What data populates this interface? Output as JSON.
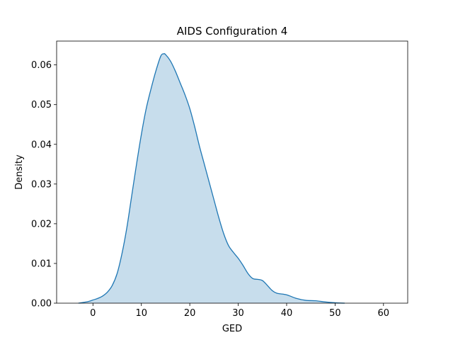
{
  "chart_data": {
    "type": "area",
    "title": "AIDS Configuration 4",
    "xlabel": "GED",
    "ylabel": "Density",
    "xlim": [
      -7.5,
      65
    ],
    "ylim": [
      0,
      0.066
    ],
    "x_ticks": [
      0,
      10,
      20,
      30,
      40,
      50,
      60
    ],
    "y_ticks": [
      0.0,
      0.01,
      0.02,
      0.03,
      0.04,
      0.05,
      0.06
    ],
    "y_tick_labels": [
      "0.00",
      "0.01",
      "0.02",
      "0.03",
      "0.04",
      "0.05",
      "0.06"
    ],
    "grid": false,
    "legend": "none",
    "colors": {
      "line": "#1f77b4",
      "fill": "#1f77b4",
      "fill_opacity": 0.25
    },
    "series": [
      {
        "x": [
          -3,
          -1,
          0,
          1,
          2,
          3,
          4,
          5,
          6,
          7,
          8,
          9,
          10,
          11,
          12,
          13,
          14,
          14.6,
          15,
          16,
          17,
          18,
          19,
          20,
          21,
          22,
          23,
          24,
          25,
          26,
          27,
          28,
          29,
          30,
          31,
          32,
          33,
          34,
          35,
          36,
          37,
          38,
          40,
          42,
          44,
          46,
          48,
          50,
          52
        ],
        "y": [
          0.0,
          0.0004,
          0.0008,
          0.0012,
          0.0018,
          0.0028,
          0.0045,
          0.0075,
          0.0125,
          0.019,
          0.027,
          0.035,
          0.0425,
          0.049,
          0.054,
          0.0585,
          0.0622,
          0.0628,
          0.0626,
          0.061,
          0.0585,
          0.0555,
          0.0525,
          0.049,
          0.0445,
          0.0395,
          0.035,
          0.0305,
          0.026,
          0.0215,
          0.0175,
          0.0145,
          0.0128,
          0.0113,
          0.0095,
          0.0075,
          0.0062,
          0.006,
          0.0057,
          0.0045,
          0.0032,
          0.0025,
          0.0021,
          0.0012,
          0.0007,
          0.0006,
          0.0003,
          0.0001,
          0.0
        ]
      }
    ]
  }
}
